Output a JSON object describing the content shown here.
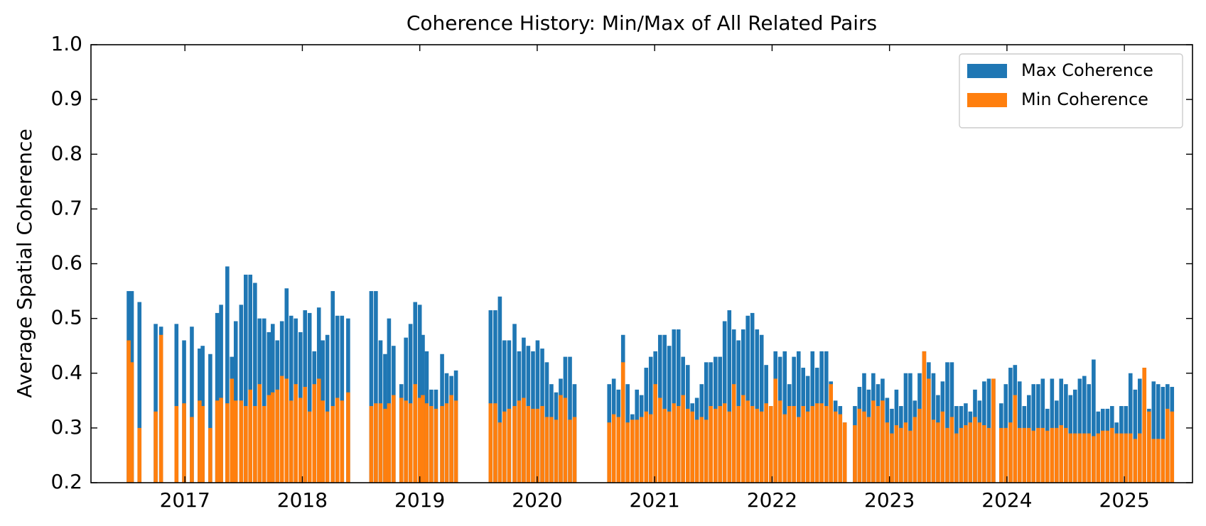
{
  "chart_data": {
    "type": "bar",
    "title": "Coherence History: Min/Max of All Related Pairs",
    "ylabel": "Average Spatial Coherence",
    "xlim": [
      2016.2,
      2025.58
    ],
    "xticks": [
      2017,
      2018,
      2019,
      2020,
      2021,
      2022,
      2023,
      2024,
      2025
    ],
    "ylim": [
      0.2,
      1.0
    ],
    "yticks": [
      0.2,
      0.3,
      0.4,
      0.5,
      0.6,
      0.7,
      0.8,
      0.9,
      {
        "value": 1.0,
        "label": "1.0"
      }
    ],
    "legend": "upper right",
    "x": [
      2016.521,
      2016.548,
      2016.613,
      2016.751,
      2016.797,
      2016.928,
      2016.993,
      2017.059,
      2017.125,
      2017.151,
      2017.216,
      2017.275,
      2017.308,
      2017.361,
      2017.4,
      2017.433,
      2017.479,
      2017.518,
      2017.557,
      2017.597,
      2017.636,
      2017.675,
      2017.715,
      2017.748,
      2017.787,
      2017.826,
      2017.866,
      2017.905,
      2017.944,
      2017.984,
      2018.023,
      2018.062,
      2018.102,
      2018.141,
      2018.174,
      2018.213,
      2018.259,
      2018.298,
      2018.338,
      2018.39,
      2018.587,
      2018.626,
      2018.666,
      2018.705,
      2018.738,
      2018.777,
      2018.843,
      2018.882,
      2018.921,
      2018.961,
      2019.0,
      2019.026,
      2019.059,
      2019.098,
      2019.138,
      2019.19,
      2019.229,
      2019.269,
      2019.308,
      2019.603,
      2019.643,
      2019.682,
      2019.721,
      2019.761,
      2019.807,
      2019.846,
      2019.885,
      2019.924,
      2019.964,
      2020.003,
      2020.043,
      2020.082,
      2020.121,
      2020.161,
      2020.2,
      2020.239,
      2020.279,
      2020.318,
      2020.613,
      2020.652,
      2020.692,
      2020.731,
      2020.77,
      2020.81,
      2020.849,
      2020.888,
      2020.928,
      2020.967,
      2021.006,
      2021.046,
      2021.085,
      2021.124,
      2021.164,
      2021.203,
      2021.242,
      2021.282,
      2021.321,
      2021.36,
      2021.4,
      2021.439,
      2021.478,
      2021.518,
      2021.557,
      2021.596,
      2021.636,
      2021.675,
      2021.714,
      2021.754,
      2021.793,
      2021.832,
      2021.872,
      2021.911,
      2021.95,
      2021.99,
      2022.029,
      2022.068,
      2022.108,
      2022.147,
      2022.186,
      2022.226,
      2022.265,
      2022.304,
      2022.344,
      2022.383,
      2022.422,
      2022.462,
      2022.501,
      2022.54,
      2022.58,
      2022.619,
      2022.705,
      2022.744,
      2022.784,
      2022.823,
      2022.862,
      2022.902,
      2022.941,
      2022.98,
      2023.02,
      2023.059,
      2023.098,
      2023.138,
      2023.177,
      2023.216,
      2023.256,
      2023.295,
      2023.334,
      2023.374,
      2023.413,
      2023.452,
      2023.492,
      2023.531,
      2023.57,
      2023.61,
      2023.649,
      2023.688,
      2023.728,
      2023.767,
      2023.806,
      2023.846,
      2023.885,
      2023.951,
      2023.99,
      2024.03,
      2024.069,
      2024.108,
      2024.148,
      2024.187,
      2024.226,
      2024.266,
      2024.305,
      2024.344,
      2024.384,
      2024.423,
      2024.462,
      2024.502,
      2024.541,
      2024.58,
      2024.62,
      2024.659,
      2024.698,
      2024.738,
      2024.777,
      2024.816,
      2024.856,
      2024.895,
      2024.934,
      2024.974,
      2025.013,
      2025.052,
      2025.092,
      2025.131,
      2025.17,
      2025.21,
      2025.249,
      2025.288,
      2025.328,
      2025.367,
      2025.406
    ],
    "series": [
      {
        "name": "Max Coherence",
        "color": "#1f77b4",
        "values": [
          0.55,
          0.55,
          0.53,
          0.49,
          0.485,
          0.49,
          0.46,
          0.485,
          0.445,
          0.45,
          0.435,
          0.51,
          0.525,
          0.595,
          0.43,
          0.495,
          0.525,
          0.58,
          0.58,
          0.565,
          0.5,
          0.5,
          0.475,
          0.49,
          0.46,
          0.495,
          0.555,
          0.505,
          0.5,
          0.475,
          0.515,
          0.51,
          0.44,
          0.52,
          0.46,
          0.47,
          0.55,
          0.505,
          0.505,
          0.5,
          0.55,
          0.55,
          0.46,
          0.435,
          0.5,
          0.45,
          0.38,
          0.465,
          0.49,
          0.53,
          0.525,
          0.47,
          0.44,
          0.37,
          0.37,
          0.435,
          0.4,
          0.395,
          0.405,
          0.515,
          0.515,
          0.54,
          0.46,
          0.46,
          0.49,
          0.44,
          0.465,
          0.45,
          0.44,
          0.46,
          0.445,
          0.42,
          0.38,
          0.365,
          0.39,
          0.43,
          0.43,
          0.38,
          0.38,
          0.39,
          0.37,
          0.47,
          0.38,
          0.325,
          0.37,
          0.36,
          0.41,
          0.43,
          0.44,
          0.47,
          0.47,
          0.45,
          0.48,
          0.48,
          0.43,
          0.415,
          0.345,
          0.355,
          0.38,
          0.42,
          0.42,
          0.43,
          0.43,
          0.495,
          0.515,
          0.48,
          0.46,
          0.48,
          0.505,
          0.51,
          0.48,
          0.47,
          0.415,
          0.34,
          0.44,
          0.43,
          0.44,
          0.38,
          0.43,
          0.44,
          0.41,
          0.395,
          0.44,
          0.41,
          0.44,
          0.44,
          0.385,
          0.35,
          0.34,
          0.31,
          0.34,
          0.375,
          0.4,
          0.37,
          0.4,
          0.38,
          0.39,
          0.355,
          0.335,
          0.37,
          0.34,
          0.4,
          0.4,
          0.35,
          0.4,
          0.44,
          0.42,
          0.4,
          0.36,
          0.385,
          0.42,
          0.42,
          0.34,
          0.34,
          0.345,
          0.33,
          0.37,
          0.35,
          0.385,
          0.39,
          0.39,
          0.345,
          0.38,
          0.41,
          0.415,
          0.385,
          0.34,
          0.36,
          0.38,
          0.38,
          0.39,
          0.335,
          0.39,
          0.35,
          0.39,
          0.38,
          0.36,
          0.37,
          0.39,
          0.395,
          0.38,
          0.425,
          0.33,
          0.335,
          0.335,
          0.34,
          0.31,
          0.34,
          0.34,
          0.4,
          0.37,
          0.39,
          0.41,
          0.335,
          0.385,
          0.38,
          0.375,
          0.38,
          0.375
        ]
      },
      {
        "name": "Min Coherence",
        "color": "#ff7f0e",
        "values": [
          0.46,
          0.42,
          0.3,
          0.33,
          0.47,
          0.34,
          0.345,
          0.32,
          0.35,
          0.34,
          0.3,
          0.35,
          0.355,
          0.345,
          0.39,
          0.35,
          0.35,
          0.34,
          0.37,
          0.34,
          0.38,
          0.34,
          0.36,
          0.365,
          0.37,
          0.395,
          0.39,
          0.35,
          0.38,
          0.355,
          0.375,
          0.33,
          0.38,
          0.39,
          0.35,
          0.33,
          0.34,
          0.355,
          0.35,
          0.365,
          0.34,
          0.345,
          0.345,
          0.335,
          0.345,
          0.36,
          0.355,
          0.35,
          0.345,
          0.38,
          0.355,
          0.36,
          0.345,
          0.34,
          0.335,
          0.34,
          0.345,
          0.36,
          0.35,
          0.345,
          0.345,
          0.31,
          0.33,
          0.335,
          0.34,
          0.35,
          0.355,
          0.34,
          0.335,
          0.335,
          0.34,
          0.32,
          0.32,
          0.315,
          0.36,
          0.355,
          0.315,
          0.32,
          0.31,
          0.325,
          0.32,
          0.42,
          0.31,
          0.315,
          0.315,
          0.32,
          0.33,
          0.325,
          0.38,
          0.355,
          0.335,
          0.33,
          0.345,
          0.34,
          0.36,
          0.335,
          0.33,
          0.315,
          0.32,
          0.315,
          0.34,
          0.335,
          0.34,
          0.345,
          0.33,
          0.38,
          0.34,
          0.36,
          0.35,
          0.34,
          0.335,
          0.33,
          0.345,
          0.34,
          0.39,
          0.35,
          0.325,
          0.34,
          0.34,
          0.32,
          0.34,
          0.33,
          0.34,
          0.345,
          0.345,
          0.34,
          0.38,
          0.33,
          0.325,
          0.31,
          0.305,
          0.335,
          0.33,
          0.32,
          0.35,
          0.34,
          0.35,
          0.31,
          0.29,
          0.305,
          0.3,
          0.31,
          0.295,
          0.32,
          0.335,
          0.44,
          0.39,
          0.315,
          0.31,
          0.33,
          0.3,
          0.32,
          0.29,
          0.3,
          0.305,
          0.31,
          0.32,
          0.31,
          0.305,
          0.3,
          0.39,
          0.3,
          0.3,
          0.31,
          0.36,
          0.3,
          0.3,
          0.3,
          0.295,
          0.3,
          0.3,
          0.295,
          0.3,
          0.3,
          0.305,
          0.3,
          0.29,
          0.29,
          0.29,
          0.29,
          0.29,
          0.285,
          0.29,
          0.295,
          0.295,
          0.3,
          0.29,
          0.29,
          0.29,
          0.29,
          0.28,
          0.29,
          0.41,
          0.33,
          0.28,
          0.28,
          0.28,
          0.335,
          0.33
        ]
      }
    ]
  }
}
